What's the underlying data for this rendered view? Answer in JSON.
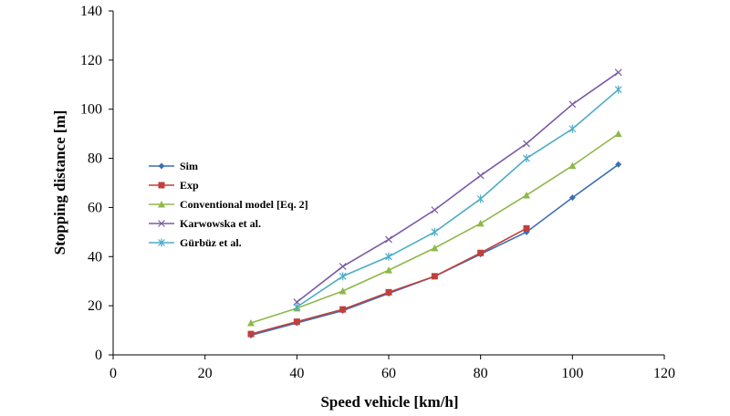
{
  "chart_data": {
    "type": "line",
    "xlabel": "Speed vehicle [km/h]",
    "ylabel": "Stopping distance [m]",
    "xlim": [
      0,
      120
    ],
    "ylim": [
      0,
      140
    ],
    "xticks": [
      0,
      20,
      40,
      60,
      80,
      100,
      120
    ],
    "yticks": [
      0,
      20,
      40,
      60,
      80,
      100,
      120,
      140
    ],
    "grid": false,
    "legend_position": "left",
    "series": [
      {
        "name": "Sim",
        "color": "#3f6fb5",
        "marker": "diamond",
        "x": [
          30,
          40,
          50,
          60,
          70,
          80,
          90,
          100,
          110
        ],
        "y": [
          8,
          13,
          18,
          25,
          32,
          41,
          50,
          64,
          77.5
        ]
      },
      {
        "name": "Exp",
        "color": "#c0403c",
        "marker": "square",
        "x": [
          30,
          40,
          50,
          60,
          70,
          80,
          90
        ],
        "y": [
          8.5,
          13.5,
          18.5,
          25.5,
          32,
          41.5,
          51.5
        ]
      },
      {
        "name": "Conventional model [Eq. 2]",
        "color": "#8fb84a",
        "marker": "triangle",
        "x": [
          30,
          40,
          50,
          60,
          70,
          80,
          90,
          100,
          110
        ],
        "y": [
          13,
          19,
          26,
          34.5,
          43.5,
          53.5,
          65,
          77,
          90
        ]
      },
      {
        "name": "Karwowska et al.",
        "color": "#7b5aa6",
        "marker": "x",
        "x": [
          40,
          50,
          60,
          70,
          80,
          90,
          100,
          110
        ],
        "y": [
          21.5,
          36,
          47,
          59,
          73,
          86,
          102,
          115
        ]
      },
      {
        "name": "Gürbüz et al.",
        "color": "#4bacc6",
        "marker": "star",
        "x": [
          40,
          50,
          60,
          70,
          80,
          90,
          100,
          110
        ],
        "y": [
          19.5,
          32,
          40,
          50,
          63.5,
          80,
          92,
          108
        ]
      }
    ]
  }
}
